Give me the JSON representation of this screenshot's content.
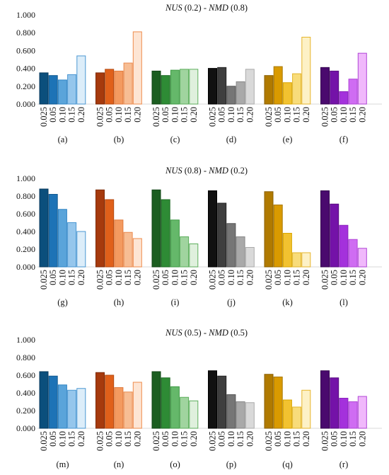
{
  "chart_data": [
    {
      "type": "bar",
      "title": "NUS (0.2) - NMD (0.8)",
      "title_parts": [
        {
          "text": "NUS",
          "italic": true
        },
        {
          "text": " (0.2) - ",
          "italic": false
        },
        {
          "text": "NMD",
          "italic": true
        },
        {
          "text": " (0.8)",
          "italic": false
        }
      ],
      "ylim": [
        0,
        1
      ],
      "yticks": [
        "0.000",
        "0.200",
        "0.400",
        "0.600",
        "0.800",
        "1.000"
      ],
      "grid": false,
      "categories": [
        "0.025",
        "0.05",
        "0.10",
        "0.15",
        "0.20"
      ],
      "groups": [
        {
          "label": "(a)",
          "values": [
            0.35,
            0.32,
            0.27,
            0.33,
            0.54
          ]
        },
        {
          "label": "(b)",
          "values": [
            0.35,
            0.39,
            0.37,
            0.46,
            0.81
          ]
        },
        {
          "label": "(c)",
          "values": [
            0.37,
            0.32,
            0.38,
            0.39,
            0.39
          ]
        },
        {
          "label": "(d)",
          "values": [
            0.4,
            0.41,
            0.2,
            0.25,
            0.39
          ]
        },
        {
          "label": "(e)",
          "values": [
            0.32,
            0.42,
            0.24,
            0.34,
            0.75
          ]
        },
        {
          "label": "(f)",
          "values": [
            0.41,
            0.37,
            0.14,
            0.28,
            0.57
          ]
        }
      ]
    },
    {
      "type": "bar",
      "title": "NUS (0.8) - NMD (0.2)",
      "title_parts": [
        {
          "text": "NUS",
          "italic": true
        },
        {
          "text": " (0.8) - ",
          "italic": false
        },
        {
          "text": "NMD",
          "italic": true
        },
        {
          "text": " (0.2)",
          "italic": false
        }
      ],
      "ylim": [
        0,
        1
      ],
      "yticks": [
        "0.000",
        "0.200",
        "0.400",
        "0.600",
        "0.800",
        "1.000"
      ],
      "grid": false,
      "categories": [
        "0.025",
        "0.05",
        "0.10",
        "0.15",
        "0.20"
      ],
      "groups": [
        {
          "label": "(g)",
          "values": [
            0.88,
            0.82,
            0.65,
            0.5,
            0.4
          ]
        },
        {
          "label": "(h)",
          "values": [
            0.87,
            0.76,
            0.53,
            0.39,
            0.32
          ]
        },
        {
          "label": "(i)",
          "values": [
            0.87,
            0.76,
            0.53,
            0.34,
            0.26
          ]
        },
        {
          "label": "(j)",
          "values": [
            0.86,
            0.72,
            0.49,
            0.34,
            0.22
          ]
        },
        {
          "label": "(k)",
          "values": [
            0.85,
            0.7,
            0.38,
            0.16,
            0.16
          ]
        },
        {
          "label": "(l)",
          "values": [
            0.86,
            0.71,
            0.47,
            0.31,
            0.21
          ]
        }
      ]
    },
    {
      "type": "bar",
      "title": "NUS (0.5) - NMD (0.5)",
      "title_parts": [
        {
          "text": "NUS",
          "italic": true
        },
        {
          "text": " (0.5) - ",
          "italic": false
        },
        {
          "text": "NMD",
          "italic": true
        },
        {
          "text": " (0.5)",
          "italic": false
        }
      ],
      "ylim": [
        0,
        1
      ],
      "yticks": [
        "0.000",
        "0.200",
        "0.400",
        "0.600",
        "0.800",
        "1.000"
      ],
      "grid": false,
      "categories": [
        "0.025",
        "0.05",
        "0.10",
        "0.15",
        "0.20"
      ],
      "groups": [
        {
          "label": "(m)",
          "values": [
            0.64,
            0.59,
            0.49,
            0.43,
            0.45
          ]
        },
        {
          "label": "(n)",
          "values": [
            0.63,
            0.6,
            0.46,
            0.41,
            0.52
          ]
        },
        {
          "label": "(o)",
          "values": [
            0.64,
            0.57,
            0.47,
            0.35,
            0.31
          ]
        },
        {
          "label": "(p)",
          "values": [
            0.65,
            0.59,
            0.38,
            0.3,
            0.29
          ]
        },
        {
          "label": "(q)",
          "values": [
            0.61,
            0.58,
            0.32,
            0.24,
            0.43
          ]
        },
        {
          "label": "(r)",
          "values": [
            0.65,
            0.57,
            0.34,
            0.3,
            0.36
          ]
        }
      ]
    }
  ],
  "colors": {
    "blue": {
      "fill": [
        "#0b4f7c",
        "#1d73b6",
        "#5aa4da",
        "#95c6ec",
        "#dcedf9"
      ],
      "stroke": [
        "#083a5c",
        "#135a90",
        "#2f84c4",
        "#4a97d2",
        "#4a97d2"
      ]
    },
    "orange": {
      "fill": [
        "#a63a0d",
        "#e0601a",
        "#f39a60",
        "#f7bd94",
        "#fde5d4"
      ],
      "stroke": [
        "#7d2a08",
        "#b34a12",
        "#e07a3c",
        "#e98a4f",
        "#ee8b4a"
      ]
    },
    "green": {
      "fill": [
        "#1b5e20",
        "#2e8b35",
        "#65b86a",
        "#a0d49f",
        "#dff0dd"
      ],
      "stroke": [
        "#114416",
        "#1f6b25",
        "#3f9a45",
        "#5cae5c",
        "#5cae5c"
      ]
    },
    "gray": {
      "fill": [
        "#111111",
        "#3f3f3f",
        "#767676",
        "#a9a9a9",
        "#d9d9d9"
      ],
      "stroke": [
        "#000000",
        "#222222",
        "#555555",
        "#888888",
        "#aaaaaa"
      ]
    },
    "gold": {
      "fill": [
        "#b07a00",
        "#d99a00",
        "#f2c230",
        "#f8dc7a",
        "#fdf1c6"
      ],
      "stroke": [
        "#8a5f00",
        "#a87700",
        "#d9a500",
        "#e2b52a",
        "#e6b52a"
      ]
    },
    "purple": {
      "fill": [
        "#4a0a6e",
        "#7412a8",
        "#a431dc",
        "#cf6cf2",
        "#f0b8fb"
      ],
      "stroke": [
        "#35064f",
        "#580d80",
        "#8a22bc",
        "#b046d6",
        "#b046d6"
      ]
    }
  },
  "palette_order": [
    "blue",
    "orange",
    "green",
    "gray",
    "gold",
    "purple"
  ]
}
